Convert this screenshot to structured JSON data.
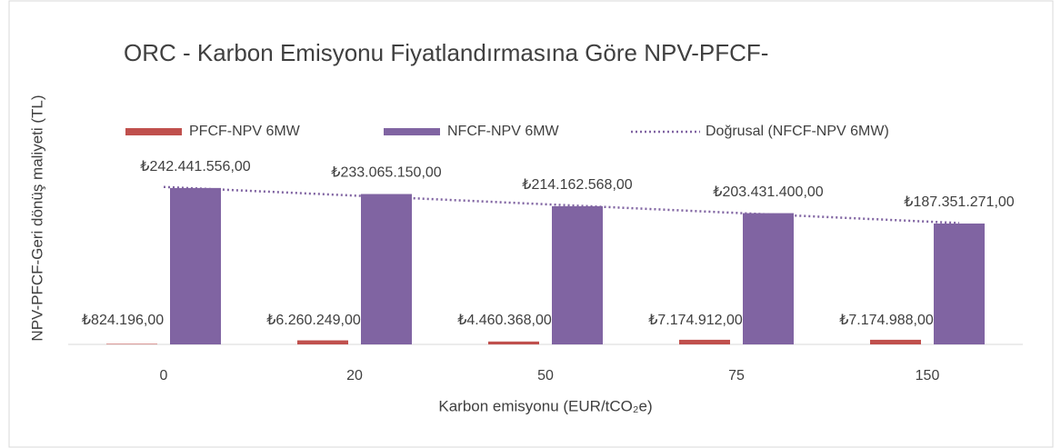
{
  "chart_data": {
    "type": "bar",
    "title": "ORC - Karbon Emisyonu Fiyatlandırmasına  Göre NPV-PFCF-",
    "x_label": "Karbon emisyonu (EUR/tCO₂e)",
    "y_label": "NPV-PFCF-Geri dönüş maliyeti (TL)",
    "categories": [
      "0",
      "20",
      "50",
      "75",
      "150"
    ],
    "series": [
      {
        "name": "PFCF-NPV 6MW",
        "color": "#c0504d",
        "values": [
          824196,
          6260249,
          4460368,
          7174912,
          7174988
        ],
        "value_labels": [
          "₺824.196,00",
          "₺6.260.249,00",
          "₺4.460.368,00",
          "₺7.174.912,00",
          "₺7.174.988,00"
        ]
      },
      {
        "name": "NFCF-NPV 6MW",
        "color": "#8064a2",
        "values": [
          242441556,
          233065150,
          214162568,
          203431400,
          187351271
        ],
        "value_labels": [
          "₺242.441.556,00",
          "₺233.065.150,00",
          "₺214.162.568,00",
          "₺203.431.400,00",
          "₺187.351.271,00"
        ]
      }
    ],
    "trendline": {
      "name": "Doğrusal (NFCF-NPV 6MW)",
      "color": "#8064a2",
      "series": 1
    },
    "ylim": [
      0,
      300000000
    ],
    "grid": false
  }
}
